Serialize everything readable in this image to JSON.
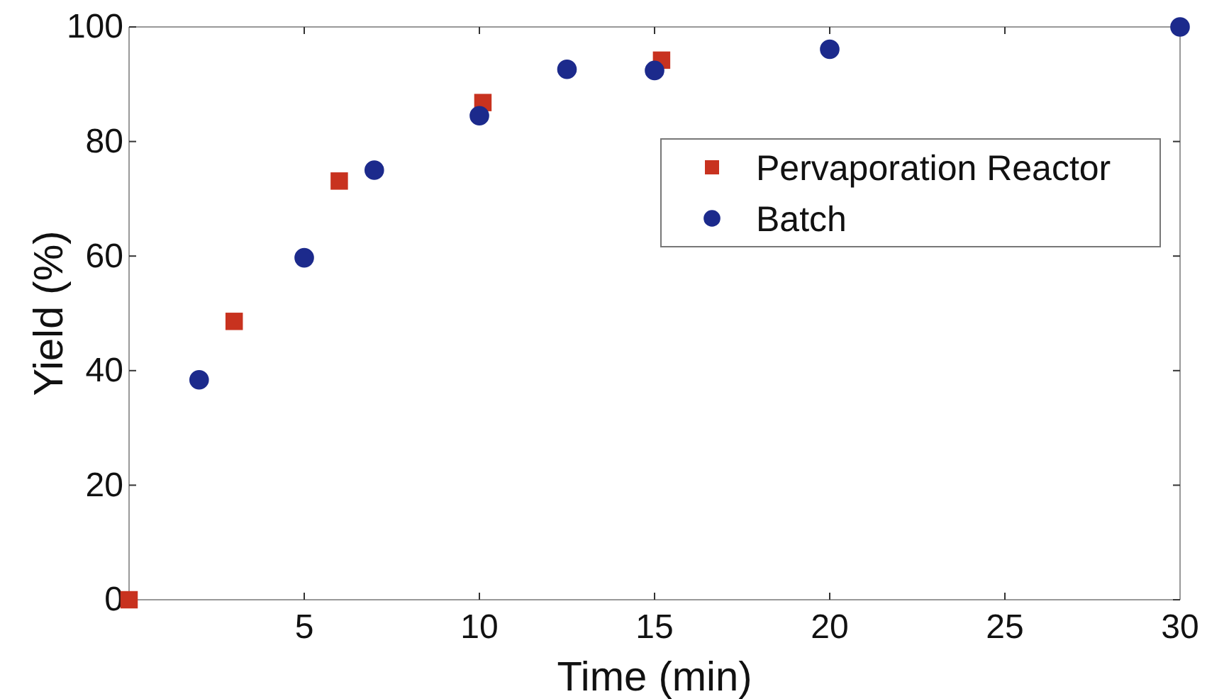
{
  "chart_data": {
    "type": "scatter",
    "xlabel": "Time (min)",
    "ylabel": "Yield (%)",
    "xlim": [
      0,
      30
    ],
    "xticks": [
      5,
      10,
      15,
      20,
      25,
      30
    ],
    "ylim": [
      0,
      100
    ],
    "yticks": [
      0,
      20,
      40,
      60,
      80,
      100
    ],
    "grid": false,
    "legend": "top right",
    "series": [
      {
        "name": "Pervaporation Reactor",
        "color": "#c8321f",
        "marker": "square",
        "x": [
          0,
          3,
          6,
          10.1,
          15.2
        ],
        "values": [
          0,
          48.6,
          73.1,
          86.8,
          94.2
        ]
      },
      {
        "name": "Batch",
        "color": "#1c2a8c",
        "marker": "circle",
        "x": [
          2,
          5,
          7,
          10,
          12.5,
          15,
          20,
          30
        ],
        "values": [
          38.4,
          59.7,
          75,
          84.5,
          92.6,
          92.4,
          96.1,
          100
        ]
      }
    ]
  }
}
